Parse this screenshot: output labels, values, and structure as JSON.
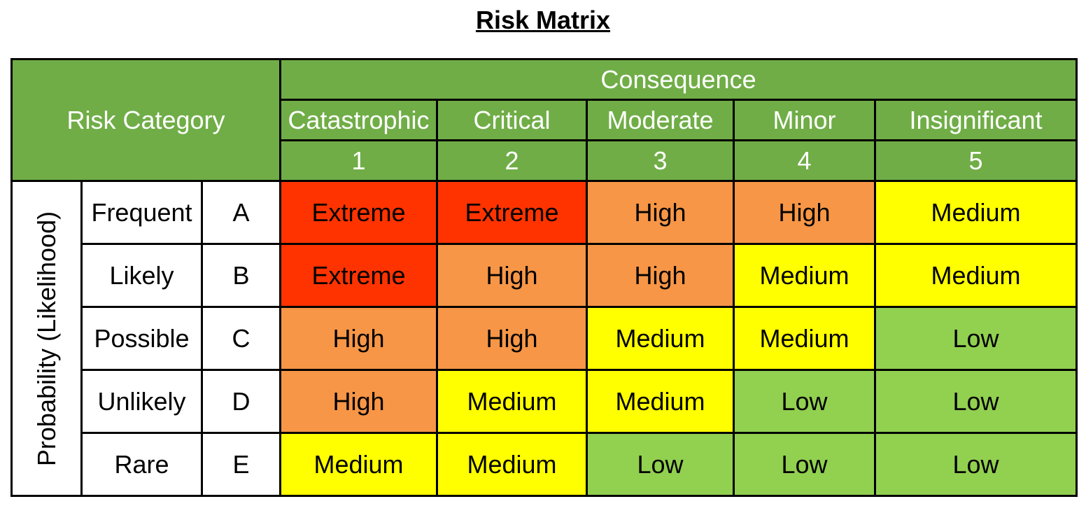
{
  "title": "Risk Matrix",
  "header": {
    "risk_category": "Risk Category",
    "consequence": "Consequence",
    "columns": [
      {
        "label": "Catastrophic",
        "num": "1"
      },
      {
        "label": "Critical",
        "num": "2"
      },
      {
        "label": "Moderate",
        "num": "3"
      },
      {
        "label": "Minor",
        "num": "4"
      },
      {
        "label": "Insignificant",
        "num": "5"
      }
    ]
  },
  "probability_label": "Probability (Likelihood)",
  "rows": [
    {
      "label": "Frequent",
      "code": "A",
      "cells": [
        "Extreme",
        "Extreme",
        "High",
        "High",
        "Medium"
      ]
    },
    {
      "label": "Likely",
      "code": "B",
      "cells": [
        "Extreme",
        "High",
        "High",
        "Medium",
        "Medium"
      ]
    },
    {
      "label": "Possible",
      "code": "C",
      "cells": [
        "High",
        "High",
        "Medium",
        "Medium",
        "Low"
      ]
    },
    {
      "label": "Unlikely",
      "code": "D",
      "cells": [
        "High",
        "Medium",
        "Medium",
        "Low",
        "Low"
      ]
    },
    {
      "label": "Rare",
      "code": "E",
      "cells": [
        "Medium",
        "Medium",
        "Low",
        "Low",
        "Low"
      ]
    }
  ],
  "colors": {
    "header_green": "#70AD47",
    "Extreme": "#FF3300",
    "High": "#F79646",
    "Medium": "#FFFF00",
    "Low": "#92D050"
  }
}
